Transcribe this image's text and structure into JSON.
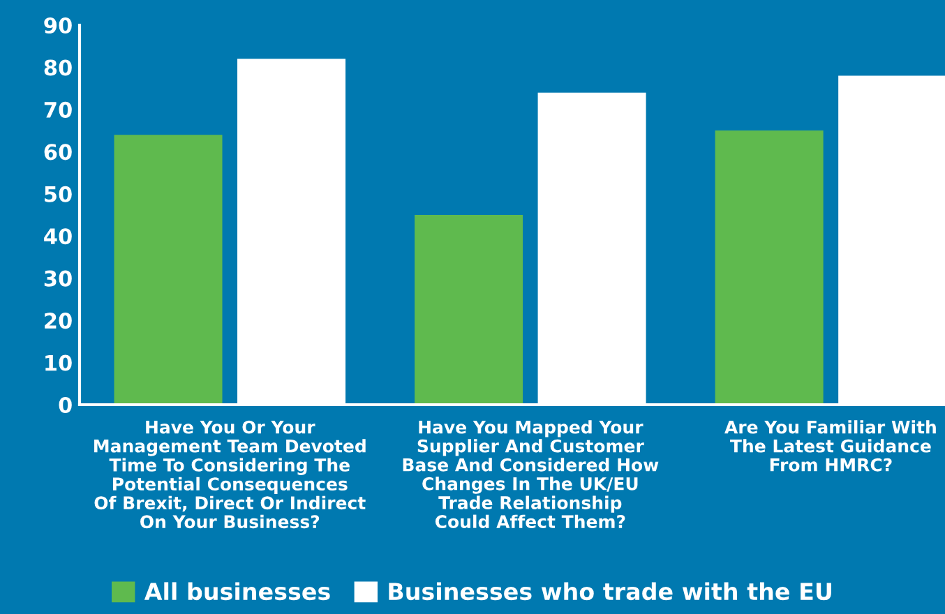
{
  "chart_data": {
    "type": "bar",
    "categories": [
      "Have You Or Your\nManagement Team Devoted\nTime To Considering The\nPotential Consequences\nOf Brexit, Direct Or Indirect\nOn Your Business?",
      "Have You Mapped Your\nSupplier And Customer\nBase And Considered How\nChanges In The UK/EU\nTrade Relationship\nCould Affect Them?",
      "Are You Familiar With\nThe Latest Guidance\nFrom HMRC?"
    ],
    "series": [
      {
        "name": "All businesses",
        "color": "#5fba4e",
        "values": [
          64,
          45,
          65
        ]
      },
      {
        "name": "Businesses who trade with the EU",
        "color": "#ffffff",
        "values": [
          82,
          74,
          78
        ]
      }
    ],
    "ylim": [
      0,
      90
    ],
    "yticks": [
      0,
      10,
      20,
      30,
      40,
      50,
      60,
      70,
      80,
      90
    ],
    "grid": false,
    "legend": "bottom"
  }
}
